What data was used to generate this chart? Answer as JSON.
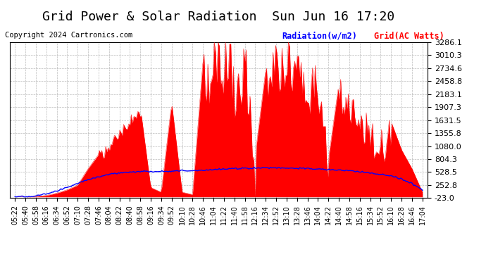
{
  "title": "Grid Power & Solar Radiation  Sun Jun 16 17:20",
  "copyright": "Copyright 2024 Cartronics.com",
  "legend_radiation": "Radiation(w/m2)",
  "legend_grid": "Grid(AC Watts)",
  "ylabel_ticks": [
    3286.1,
    3010.3,
    2734.6,
    2458.8,
    2183.1,
    1907.3,
    1631.5,
    1355.8,
    1080.0,
    804.3,
    528.5,
    252.8,
    -23.0
  ],
  "ymin": -23.0,
  "ymax": 3286.1,
  "background_color": "#ffffff",
  "plot_bg_color": "#ffffff",
  "grid_color": "#aaaaaa",
  "radiation_color": "#0000ff",
  "grid_power_color": "#ff0000",
  "fill_color": "#ff0000",
  "title_fontsize": 13,
  "tick_fontsize": 8,
  "copyright_fontsize": 7.5,
  "time_labels": [
    "05:22",
    "05:40",
    "05:58",
    "06:16",
    "06:34",
    "06:52",
    "07:10",
    "07:28",
    "07:46",
    "08:04",
    "08:22",
    "08:40",
    "08:58",
    "09:16",
    "09:34",
    "09:52",
    "10:10",
    "10:28",
    "10:46",
    "11:04",
    "11:22",
    "11:40",
    "11:58",
    "12:16",
    "12:34",
    "12:52",
    "13:10",
    "13:28",
    "13:46",
    "14:04",
    "14:22",
    "14:40",
    "14:58",
    "15:16",
    "15:34",
    "15:52",
    "16:10",
    "16:28",
    "16:46",
    "17:04"
  ]
}
